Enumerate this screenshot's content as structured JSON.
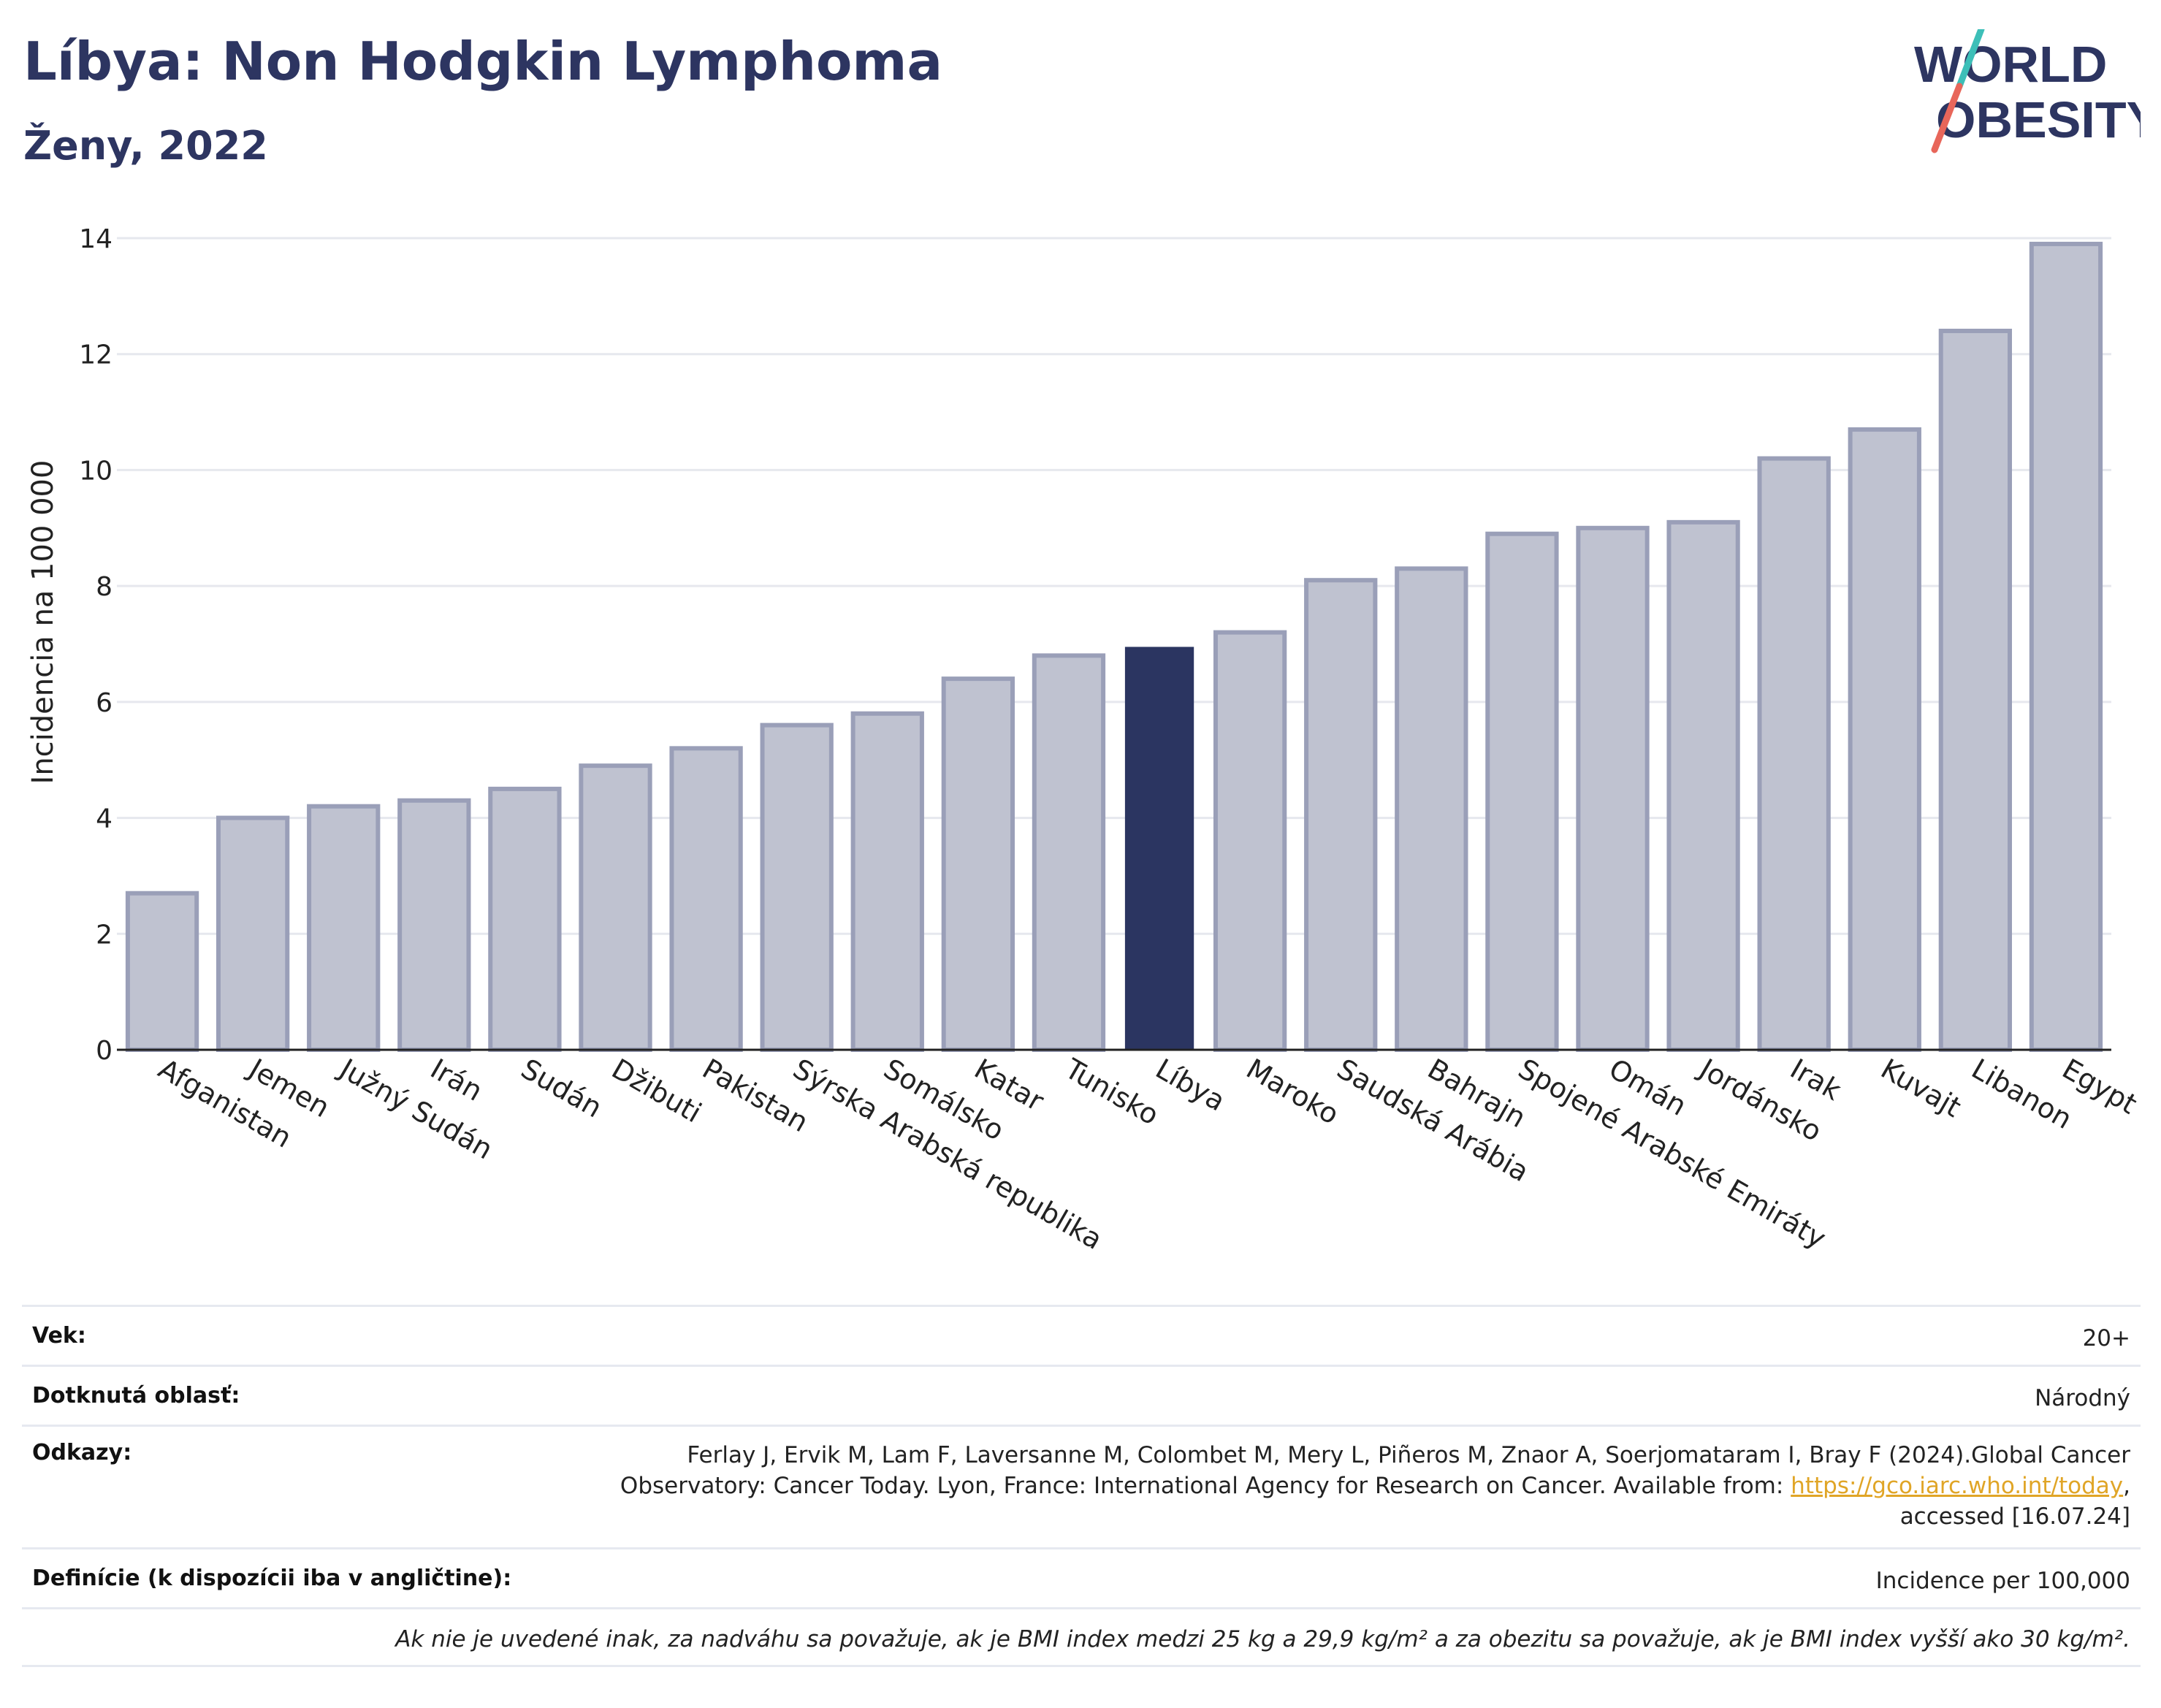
{
  "header": {
    "title": "Líbya: Non Hodgkin Lymphoma",
    "subtitle": "Ženy, 2022"
  },
  "logo": {
    "line1": "WORLD",
    "line2": "OBESITY"
  },
  "colors": {
    "highlight": "#2b3561",
    "bar_fill": "#bfc2d0",
    "bar_stroke": "#9a9fb8",
    "grid": "#e6e8ee",
    "link": "#e0a526",
    "logo_teal": "#3dbfb8",
    "logo_red": "#e8665a"
  },
  "chart_data": {
    "type": "bar",
    "title": "Líbya: Non Hodgkin Lymphoma",
    "subtitle": "Ženy, 2022",
    "xlabel": "",
    "ylabel": "Incidencia na 100 000",
    "ylim": [
      0,
      14
    ],
    "yticks": [
      0,
      2,
      4,
      6,
      8,
      10,
      12,
      14
    ],
    "grid": true,
    "highlight": "Líbya",
    "categories": [
      "Afganistan",
      "Jemen",
      "Južný Sudán",
      "Irán",
      "Sudán",
      "Džibuti",
      "Pakistan",
      "Sýrska Arabská republika",
      "Somálsko",
      "Katar",
      "Tunisko",
      "Líbya",
      "Maroko",
      "Saudská Arábia",
      "Bahrajn",
      "Spojené Arabské Emiráty",
      "Omán",
      "Jordánsko",
      "Irak",
      "Kuvajt",
      "Libanon",
      "Egypt"
    ],
    "values": [
      2.7,
      4.0,
      4.2,
      4.3,
      4.5,
      4.9,
      5.2,
      5.6,
      5.8,
      6.4,
      6.8,
      6.95,
      7.2,
      8.1,
      8.3,
      8.9,
      9.0,
      9.1,
      10.2,
      10.7,
      12.4,
      13.9
    ]
  },
  "info": {
    "age_label": "Vek:",
    "age_value": "20+",
    "area_label": "Dotknutá oblasť:",
    "area_value": "Národný",
    "refs_label": "Odkazy:",
    "refs_line1": "Ferlay J, Ervik M, Lam F, Laversanne M, Colombet M, Mery L, Piñeros M, Znaor A, Soerjomataram I, Bray F (2024).Global Cancer",
    "refs_line2_pre": "Observatory: Cancer Today. Lyon, France: International Agency for Research on Cancer. Available from: ",
    "refs_link": "https://gco.iarc.who.int/today",
    "refs_line2_post": ",",
    "refs_line3": "accessed [16.07.24]",
    "def_label": "Definície (k dispozícii iba v angličtine):",
    "def_value": "Incidence per 100,000",
    "note": "Ak nie je uvedené inak, za nadváhu sa považuje, ak je BMI index medzi 25 kg a 29,9 kg/m² a za obezitu sa považuje, ak je BMI index vyšší ako 30 kg/m²."
  }
}
